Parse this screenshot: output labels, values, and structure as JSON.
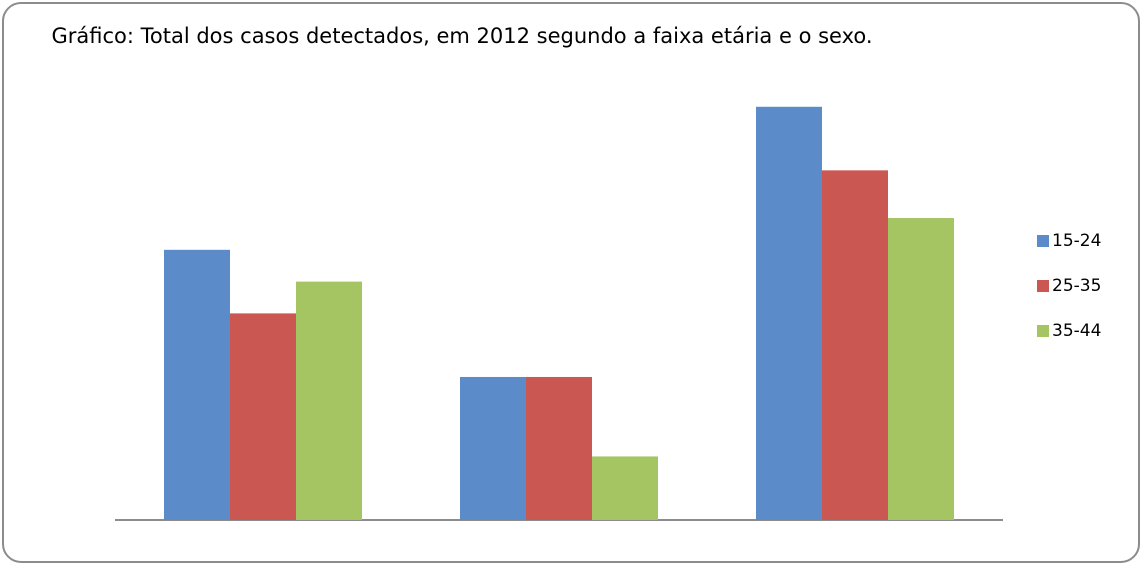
{
  "chart_data": {
    "type": "bar",
    "title": "Gráfico: Total dos casos detectados, em 2012 segundo a faixa etária e o sexo.",
    "categories": [
      null,
      null,
      null
    ],
    "series": [
      {
        "name": "15-24",
        "color": "#5b8bc9",
        "values": [
          17,
          9,
          26
        ]
      },
      {
        "name": "25-35",
        "color": "#cb5753",
        "values": [
          13,
          9,
          22
        ]
      },
      {
        "name": "35-44",
        "color": "#a5c462",
        "values": [
          15,
          4,
          19
        ]
      }
    ],
    "ylim": [
      0,
      28
    ],
    "legend": "right"
  }
}
